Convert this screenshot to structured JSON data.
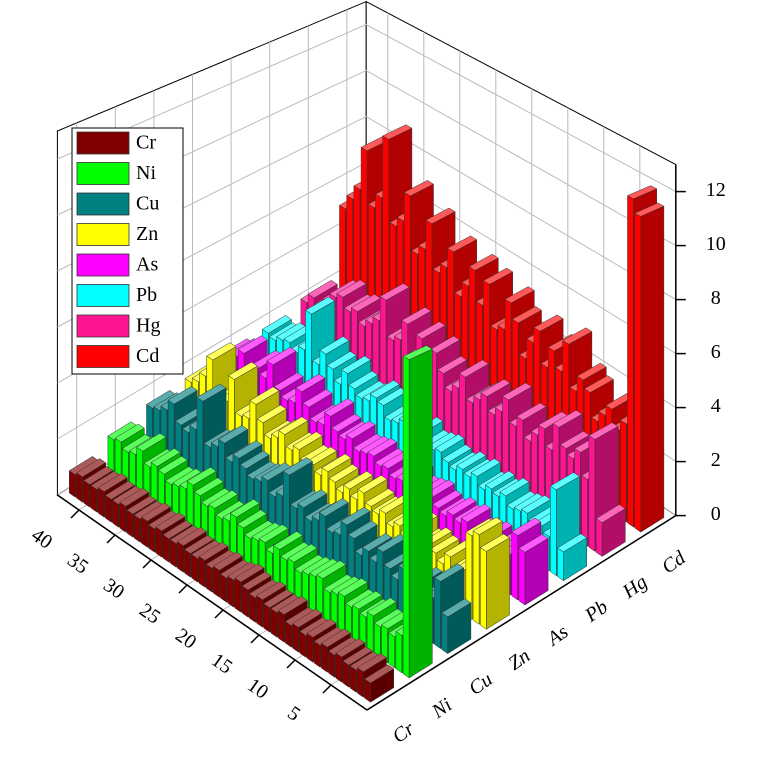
{
  "chart_data": {
    "type": "bar3d",
    "x": [
      1,
      2,
      3,
      4,
      5,
      6,
      7,
      8,
      9,
      10,
      11,
      12,
      13,
      14,
      15,
      16,
      17,
      18,
      19,
      20,
      21,
      22,
      23,
      24,
      25,
      26,
      27,
      28,
      29,
      30,
      31,
      32,
      33,
      34,
      35,
      36,
      37,
      38,
      39,
      40,
      41,
      42
    ],
    "xlim": [
      0,
      43
    ],
    "xticks": [
      5,
      10,
      15,
      20,
      25,
      30,
      35,
      40
    ],
    "ylim": [
      0,
      13
    ],
    "yticks": [
      0,
      2,
      4,
      6,
      8,
      10,
      12
    ],
    "grid": true,
    "legend": "upper left",
    "series": [
      {
        "name": "Cr",
        "color": "#800000",
        "values": [
          0.6,
          0.8,
          0.7,
          0.7,
          0.8,
          0.7,
          0.8,
          0.7,
          0.8,
          0.7,
          0.8,
          0.7,
          0.9,
          0.8,
          0.8,
          0.9,
          0.8,
          0.9,
          1.0,
          0.9,
          0.8,
          0.9,
          0.8,
          0.9,
          0.8,
          0.8,
          0.9,
          0.8,
          0.8,
          0.9,
          0.8,
          0.9,
          0.8,
          0.8,
          0.9,
          0.8,
          0.8,
          0.9,
          0.8,
          0.8,
          0.9,
          0.8
        ]
      },
      {
        "name": "Ni",
        "color": "#00ff00",
        "values": [
          10.2,
          1.2,
          1.0,
          1.1,
          1.0,
          1.2,
          1.0,
          1.1,
          1.0,
          1.2,
          1.1,
          1.0,
          1.3,
          1.2,
          1.1,
          1.0,
          1.2,
          1.1,
          1.3,
          1.0,
          1.2,
          1.1,
          1.0,
          1.2,
          1.4,
          1.1,
          1.0,
          1.2,
          1.1,
          1.3,
          1.5,
          1.2,
          1.1,
          1.0,
          1.2,
          1.3,
          1.1,
          1.5,
          1.2,
          1.1,
          1.3,
          1.2
        ]
      },
      {
        "name": "Cu",
        "color": "#008080",
        "values": [
          1.2,
          2.2,
          1.5,
          1.3,
          1.6,
          1.4,
          1.8,
          1.3,
          1.5,
          1.9,
          1.4,
          1.6,
          1.3,
          1.7,
          2.0,
          1.5,
          1.4,
          1.8,
          1.5,
          1.3,
          1.6,
          1.4,
          2.4,
          1.5,
          1.3,
          1.7,
          1.5,
          1.4,
          1.6,
          1.8,
          1.5,
          2.0,
          1.7,
          1.5,
          3.0,
          1.8,
          1.5,
          1.6,
          2.2,
          1.8,
          1.6,
          1.5
        ]
      },
      {
        "name": "Zn",
        "color": "#ffff00",
        "values": [
          2.6,
          3.0,
          2.8,
          1.5,
          1.3,
          1.6,
          1.2,
          1.4,
          1.5,
          1.3,
          1.7,
          1.4,
          1.5,
          1.3,
          1.6,
          1.4,
          1.5,
          1.8,
          1.4,
          1.6,
          1.3,
          1.5,
          1.7,
          1.4,
          1.6,
          1.5,
          1.8,
          1.6,
          2.0,
          1.7,
          1.5,
          1.9,
          2.4,
          1.7,
          1.6,
          2.8,
          1.8,
          1.6,
          3.0,
          2.2,
          1.8,
          1.6
        ]
      },
      {
        "name": "As",
        "color": "#ff00ff",
        "values": [
          1.8,
          2.2,
          1.4,
          1.3,
          1.2,
          1.4,
          1.3,
          1.2,
          1.5,
          1.3,
          1.4,
          1.2,
          1.3,
          1.5,
          1.4,
          1.3,
          1.6,
          1.4,
          1.3,
          1.5,
          1.4,
          1.6,
          1.5,
          1.4,
          1.7,
          1.5,
          1.6,
          2.0,
          1.5,
          1.4,
          1.8,
          2.2,
          1.6,
          1.5,
          1.7,
          2.5,
          1.8,
          2.0,
          1.6,
          2.2,
          1.9,
          1.7
        ]
      },
      {
        "name": "Pb",
        "color": "#00ffff",
        "values": [
          1.0,
          3.0,
          1.2,
          1.4,
          1.3,
          1.5,
          1.4,
          1.3,
          1.6,
          1.4,
          1.5,
          1.3,
          1.6,
          1.4,
          1.5,
          1.3,
          1.4,
          1.6,
          1.5,
          1.4,
          1.7,
          1.5,
          1.8,
          1.6,
          1.5,
          1.9,
          2.0,
          1.7,
          1.6,
          1.8,
          2.2,
          1.6,
          2.0,
          2.4,
          1.8,
          3.6,
          2.0,
          1.7,
          1.9,
          1.8,
          1.6,
          1.7
        ]
      },
      {
        "name": "Hg",
        "color": "#ff1493",
        "values": [
          1.2,
          4.0,
          2.4,
          3.2,
          2.8,
          3.0,
          3.6,
          2.6,
          3.2,
          2.8,
          2.4,
          3.0,
          2.6,
          3.4,
          2.8,
          2.5,
          3.0,
          2.7,
          2.4,
          3.2,
          2.6,
          2.3,
          2.8,
          3.4,
          2.9,
          3.6,
          2.7,
          3.8,
          3.0,
          2.8,
          4.2,
          3.2,
          2.9,
          2.6,
          3.0,
          2.8,
          3.2,
          3.0,
          2.6,
          2.2,
          2.4,
          2.0
        ]
      },
      {
        "name": "Cd",
        "color": "#ff0000",
        "values": [
          11.5,
          12.0,
          3.6,
          3.2,
          3.8,
          3.4,
          3.0,
          3.9,
          4.2,
          3.6,
          5.2,
          4.0,
          4.6,
          3.8,
          5.0,
          4.4,
          3.6,
          4.8,
          5.4,
          4.2,
          4.0,
          5.6,
          4.6,
          5.8,
          5.0,
          4.4,
          6.0,
          5.2,
          4.8,
          6.6,
          5.4,
          5.0,
          7.2,
          6.0,
          5.6,
          9.0,
          6.4,
          5.8,
          8.0,
          6.2,
          5.6,
          5.0
        ]
      }
    ]
  }
}
